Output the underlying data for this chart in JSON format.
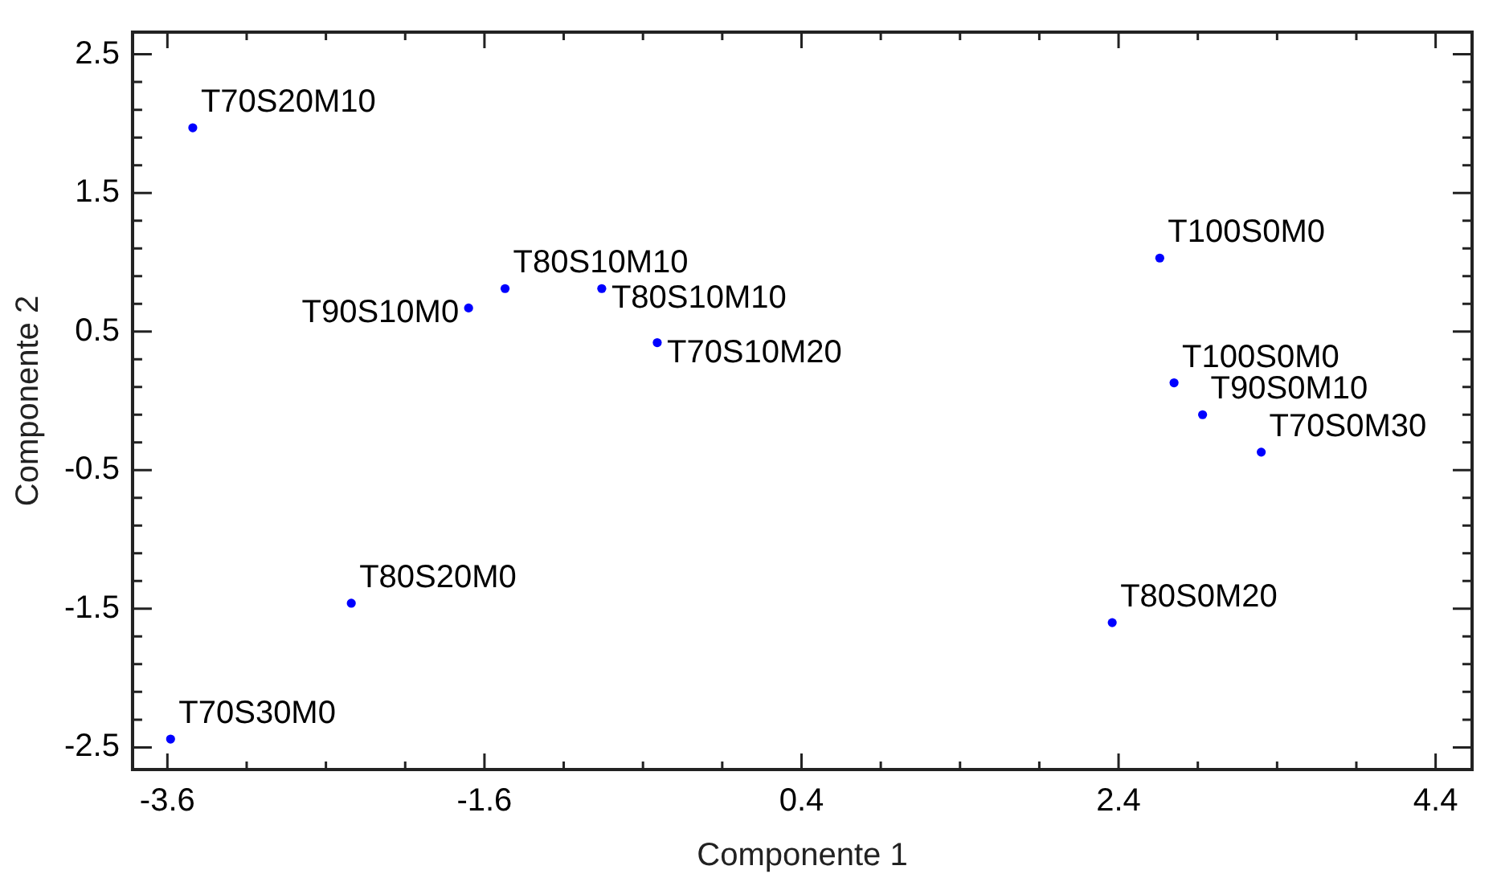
{
  "chart_data": {
    "type": "scatter",
    "xlabel": "Componente 1",
    "ylabel": "Componente 2",
    "marker": "circle",
    "grid": false,
    "legend": false,
    "xlim": [
      -3.82,
      4.63
    ],
    "ylim": [
      -2.66,
      2.66
    ],
    "xticks": [
      -3.6,
      {
        "value": -3.1,
        "label": null
      },
      {
        "value": -2.6,
        "label": null
      },
      {
        "value": -2.1,
        "label": null
      },
      -1.6,
      {
        "value": -1.1,
        "label": null
      },
      {
        "value": -0.6,
        "label": null
      },
      {
        "value": -0.1,
        "label": null
      },
      0.4,
      {
        "value": 0.9,
        "label": null
      },
      {
        "value": 1.4,
        "label": null
      },
      {
        "value": 1.9,
        "label": null
      },
      2.4,
      {
        "value": 2.9,
        "label": null
      },
      {
        "value": 3.4,
        "label": null
      },
      {
        "value": 3.9,
        "label": null
      },
      4.4
    ],
    "yticks": [
      -2.5,
      {
        "value": -2.3,
        "label": null
      },
      {
        "value": -2.1,
        "label": null
      },
      {
        "value": -1.9,
        "label": null
      },
      {
        "value": -1.7,
        "label": null
      },
      -1.5,
      {
        "value": -1.3,
        "label": null
      },
      {
        "value": -1.1,
        "label": null
      },
      {
        "value": -0.9,
        "label": null
      },
      {
        "value": -0.7,
        "label": null
      },
      -0.5,
      {
        "value": -0.3,
        "label": null
      },
      {
        "value": -0.1,
        "label": null
      },
      {
        "value": 0.1,
        "label": null
      },
      {
        "value": 0.3,
        "label": null
      },
      0.5,
      {
        "value": 0.7,
        "label": null
      },
      {
        "value": 0.9,
        "label": null
      },
      {
        "value": 1.1,
        "label": null
      },
      {
        "value": 1.3,
        "label": null
      },
      1.5,
      {
        "value": 1.7,
        "label": null
      },
      {
        "value": 1.9,
        "label": null
      },
      {
        "value": 2.1,
        "label": null
      },
      {
        "value": 2.3,
        "label": null
      },
      2.5
    ],
    "series": [
      {
        "color": "#0000ff",
        "x": [
          -3.44,
          -1.47,
          -0.86,
          -1.7,
          -0.51,
          2.66,
          2.75,
          2.93,
          3.3,
          -2.44,
          2.36,
          -3.58
        ],
        "values": [
          1.97,
          0.81,
          0.81,
          0.67,
          0.42,
          1.03,
          0.13,
          -0.1,
          -0.37,
          -1.46,
          -1.6,
          -2.44
        ]
      }
    ],
    "annotations": [
      {
        "text": "T70S20M10",
        "x": -3.44,
        "y": 1.97
      },
      {
        "text": "T80S10M10",
        "x": -1.47,
        "y": 0.81
      },
      {
        "text": "T80S10M10",
        "x": -0.86,
        "y": 0.81
      },
      {
        "text": "T90S10M0",
        "x": -1.7,
        "y": 0.67
      },
      {
        "text": "T70S10M20",
        "x": -0.51,
        "y": 0.42
      },
      {
        "text": "T100S0M0",
        "x": 2.66,
        "y": 1.03
      },
      {
        "text": "T100S0M0",
        "x": 2.75,
        "y": 0.13
      },
      {
        "text": "T90S0M10",
        "x": 2.93,
        "y": -0.1
      },
      {
        "text": "T70S0M30",
        "x": 3.3,
        "y": -0.37
      },
      {
        "text": "T80S20M0",
        "x": -2.44,
        "y": -1.46
      },
      {
        "text": "T80S0M20",
        "x": 2.36,
        "y": -1.6
      },
      {
        "text": "T70S30M0",
        "x": -3.58,
        "y": -2.44
      }
    ]
  }
}
